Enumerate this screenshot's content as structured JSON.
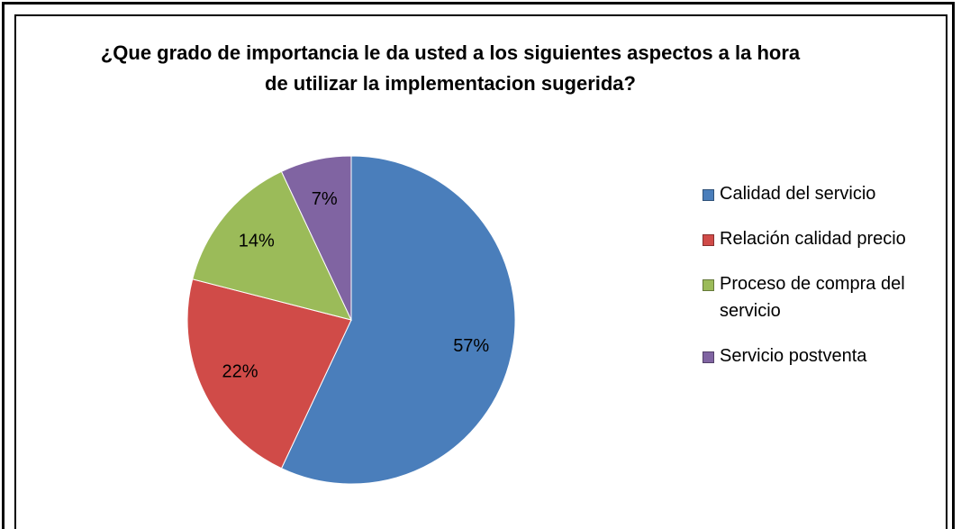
{
  "chart_data": {
    "type": "pie",
    "title": "¿Que grado de importancia le da usted a los siguientes aspectos a la hora de utilizar la implementacion sugerida?",
    "categories": [
      "Calidad del servicio",
      "Relación calidad precio",
      "Proceso de compra del servicio",
      "Servicio postventa"
    ],
    "values": [
      57,
      22,
      14,
      7
    ],
    "value_labels": [
      "57%",
      "22%",
      "14%",
      "7%"
    ],
    "colors": [
      "#4a7ebb",
      "#d04b48",
      "#9bbb59",
      "#8064a2"
    ],
    "legend": "right"
  }
}
